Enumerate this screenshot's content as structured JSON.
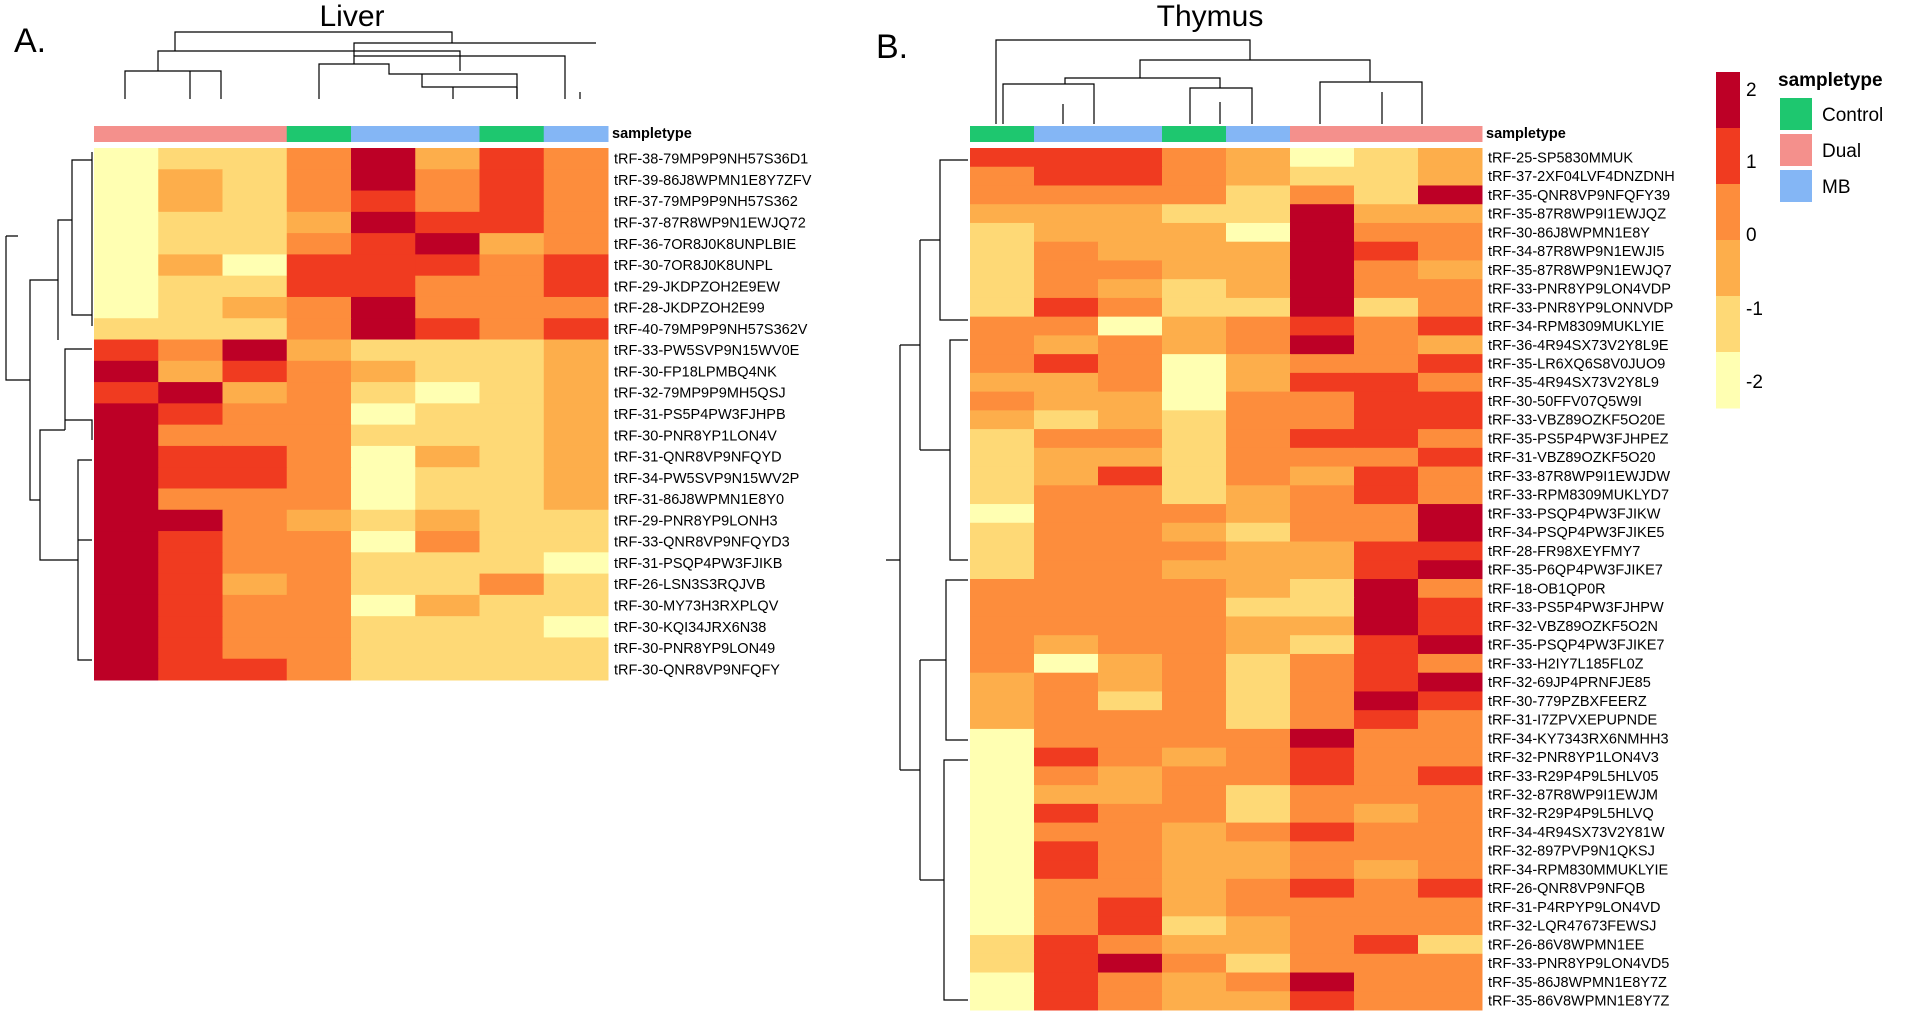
{
  "figure": {
    "panel_a": {
      "letter": "A.",
      "title": "Liver"
    },
    "panel_b": {
      "letter": "B.",
      "title": "Thymus"
    }
  },
  "chart_data": [
    {
      "type": "heatmap",
      "title": "Liver",
      "panel": "A.",
      "annotation_label": "sampletype",
      "column_groups": [
        "Dual",
        "Dual",
        "Dual",
        "Control",
        "MB",
        "MB",
        "Control",
        "MB"
      ],
      "rows": [
        "tRF-38-79MP9P9NH57S36D1",
        "tRF-39-86J8WPMN1E8Y7ZFV",
        "tRF-37-79MP9P9NH57S362",
        "tRF-37-87R8WP9N1EWJQ72",
        "tRF-36-7OR8J0K8UNPLBIE",
        "tRF-30-7OR8J0K8UNPL",
        "tRF-29-JKDPZOH2E9EW",
        "tRF-28-JKDPZOH2E99",
        "tRF-40-79MP9P9NH57S362V",
        "tRF-33-PW5SVP9N15WV0E",
        "tRF-30-FP18LPMBQ4NK",
        "tRF-32-79MP9P9MH5QSJ",
        "tRF-31-PS5P4PW3FJHPB",
        "tRF-30-PNR8YP1LON4V",
        "tRF-31-QNR8VP9NFQYD",
        "tRF-34-PW5SVP9N15WV2P",
        "tRF-31-86J8WPMN1E8Y0",
        "tRF-29-PNR8YP9LONH3",
        "tRF-33-QNR8VP9NFQYD3",
        "tRF-31-PSQP4PW3FJIKB",
        "tRF-26-LSN3S3RQJVB",
        "tRF-30-MY73H3RXPLQV",
        "tRF-30-KQI34JRX6N38",
        "tRF-30-PNR8YP9LON49",
        "tRF-30-QNR8VP9NFQFY"
      ],
      "values": [
        [
          -2,
          -1,
          -1,
          0,
          2,
          -0.5,
          1,
          0
        ],
        [
          -2,
          -0.5,
          -1,
          0,
          2,
          0,
          1,
          0
        ],
        [
          -2,
          -0.5,
          -1,
          0,
          1,
          0,
          1,
          0
        ],
        [
          -2,
          -1,
          -1,
          -0.5,
          2,
          1,
          1,
          0
        ],
        [
          -2,
          -1,
          -1,
          0,
          1,
          2,
          -0.5,
          0
        ],
        [
          -2,
          -0.5,
          -2,
          1,
          1,
          1,
          0,
          1
        ],
        [
          -2,
          -1,
          -1,
          1,
          1,
          0,
          0,
          1
        ],
        [
          -2,
          -1,
          -0.5,
          0,
          2,
          0,
          0,
          0
        ],
        [
          -1,
          -1,
          -1,
          0,
          2,
          1,
          0,
          1
        ],
        [
          1,
          0,
          2,
          -0.5,
          -1,
          -1,
          -1,
          -0.5
        ],
        [
          2,
          -0.5,
          1,
          0,
          -0.5,
          -1,
          -1,
          -0.5
        ],
        [
          1,
          2,
          -0.5,
          0,
          -1,
          -2,
          -1,
          -0.5
        ],
        [
          2,
          1,
          0,
          0,
          -2,
          -1,
          -1,
          -0.5
        ],
        [
          2,
          0,
          0,
          0,
          -1,
          -1,
          -1,
          -0.5
        ],
        [
          2,
          1,
          1,
          0,
          -2,
          -0.5,
          -1,
          -0.5
        ],
        [
          2,
          1,
          1,
          0,
          -2,
          -1,
          -1,
          -0.5
        ],
        [
          2,
          0,
          0,
          0,
          -2,
          -1,
          -1,
          -0.5
        ],
        [
          2,
          2,
          0,
          -0.5,
          -1,
          -0.5,
          -1,
          -1
        ],
        [
          2,
          1,
          0,
          0,
          -2,
          0,
          -1,
          -1
        ],
        [
          2,
          1,
          0,
          0,
          -1,
          -1,
          -1,
          -2
        ],
        [
          2,
          1,
          -0.5,
          0,
          -1,
          -1,
          0,
          -1
        ],
        [
          2,
          1,
          0,
          0,
          -2,
          -0.5,
          -1,
          -1
        ],
        [
          2,
          1,
          0,
          0,
          -1,
          -1,
          -1,
          -2
        ],
        [
          2,
          1,
          0,
          0,
          -1,
          -1,
          -1,
          -1
        ],
        [
          2,
          1,
          1,
          0,
          -1,
          -1,
          -1,
          -1
        ]
      ]
    },
    {
      "type": "heatmap",
      "title": "Thymus",
      "panel": "B.",
      "annotation_label": "sampletype",
      "column_groups": [
        "Control",
        "MB",
        "MB",
        "Control",
        "MB",
        "Dual",
        "Dual",
        "Dual"
      ],
      "rows": [
        "tRF-25-SP5830MMUK",
        "tRF-37-2XF04LVF4DNZDNH",
        "tRF-35-QNR8VP9NFQFY39",
        "tRF-35-87R8WP9I1EWJQZ",
        "tRF-30-86J8WPMN1E8Y",
        "tRF-34-87R8WP9N1EWJI5",
        "tRF-35-87R8WP9N1EWJQ7",
        "tRF-33-PNR8YP9LON4VDP",
        "tRF-33-PNR8YP9LONNVDP",
        "tRF-34-RPM8309MUKLYIE",
        "tRF-36-4R94SX73V2Y8L9E",
        "tRF-35-LR6XQ6S8V0JUO9",
        "tRF-35-4R94SX73V2Y8L9",
        "tRF-30-50FFV07Q5W9I",
        "tRF-33-VBZ89OZKF5O20E",
        "tRF-35-PS5P4PW3FJHPEZ",
        "tRF-31-VBZ89OZKF5O20",
        "tRF-33-87R8WP9I1EWJDW",
        "tRF-33-RPM8309MUKLYD7",
        "tRF-33-PSQP4PW3FJIKW",
        "tRF-34-PSQP4PW3FJIKE5",
        "tRF-28-FR98XEYFMY7",
        "tRF-35-P6QP4PW3FJIKE7",
        "tRF-18-OB1QP0R",
        "tRF-33-PS5P4PW3FJHPW",
        "tRF-32-VBZ89OZKF5O2N",
        "tRF-35-PSQP4PW3FJIKE7",
        "tRF-33-H2IY7L185FL0Z",
        "tRF-32-69JP4PRNFJE85",
        "tRF-30-779PZBXFEERZ",
        "tRF-31-I7ZPVXEPUPNDE",
        "tRF-34-KY7343RX6NMHH3",
        "tRF-32-PNR8YP1LON4V3",
        "tRF-33-R29P4P9L5HLV05",
        "tRF-32-87R8WP9I1EWJM",
        "tRF-32-R29P4P9L5HLVQ",
        "tRF-34-4R94SX73V2Y81W",
        "tRF-32-897PVP9N1QKSJ",
        "tRF-34-RPM830MMUKLYIE",
        "tRF-26-QNR8VP9NFQB",
        "tRF-31-P4RPYP9LON4VD",
        "tRF-32-LQR47673FEWSJ",
        "tRF-26-86V8WPMN1EE",
        "tRF-33-PNR8YP9LON4VD5",
        "tRF-35-86J8WPMN1E8Y7Z",
        "tRF-35-86V8WPMN1E8Y7Z"
      ],
      "values": [
        [
          1,
          1,
          1,
          0,
          -0.5,
          -2,
          -1,
          -0.5
        ],
        [
          0,
          1,
          1,
          0,
          -0.5,
          -1,
          -1,
          -0.5
        ],
        [
          0,
          0,
          0,
          0,
          -1,
          0,
          -1,
          2
        ],
        [
          -0.5,
          -0.5,
          -0.5,
          -1,
          -1,
          2,
          -0.5,
          -0.5
        ],
        [
          -1,
          -0.5,
          -0.5,
          -0.5,
          -2,
          2,
          0,
          0
        ],
        [
          -1,
          0,
          -0.5,
          -0.5,
          -0.5,
          2,
          1,
          0
        ],
        [
          -1,
          0,
          0,
          -0.5,
          -0.5,
          2,
          0,
          -0.5
        ],
        [
          -1,
          0,
          -0.5,
          -1,
          -0.5,
          2,
          0,
          0
        ],
        [
          -1,
          1,
          0,
          -1,
          -1,
          2,
          -1,
          0
        ],
        [
          0,
          0,
          -2,
          -0.5,
          0,
          1,
          0,
          1
        ],
        [
          0,
          -0.5,
          0,
          -0.5,
          0,
          2,
          0,
          -0.5
        ],
        [
          0,
          1,
          0,
          -2,
          -0.5,
          0,
          0,
          1
        ],
        [
          -0.5,
          -0.5,
          0,
          -2,
          -0.5,
          1,
          1,
          0
        ],
        [
          0,
          -0.5,
          -0.5,
          -2,
          0,
          0,
          1,
          1
        ],
        [
          -0.5,
          -1,
          -0.5,
          -1,
          0,
          0,
          1,
          1
        ],
        [
          -1,
          0,
          0,
          -1,
          0,
          1,
          1,
          0
        ],
        [
          -1,
          -0.5,
          -0.5,
          -1,
          0,
          0,
          0,
          1
        ],
        [
          -1,
          -0.5,
          1,
          -1,
          0,
          -0.5,
          1,
          0
        ],
        [
          -1,
          0,
          0,
          -1,
          -0.5,
          0,
          1,
          0
        ],
        [
          -2,
          0,
          0,
          0,
          -0.5,
          0,
          0,
          2
        ],
        [
          -1,
          0,
          0,
          -0.5,
          -1,
          0,
          0,
          2
        ],
        [
          -1,
          0,
          0,
          0,
          -0.5,
          -0.5,
          1,
          1
        ],
        [
          -1,
          0,
          0,
          -0.5,
          -0.5,
          -0.5,
          1,
          2
        ],
        [
          0,
          0,
          0,
          0,
          -0.5,
          -1,
          2,
          0
        ],
        [
          0,
          0,
          0,
          0,
          -1,
          -1,
          2,
          1
        ],
        [
          0,
          0,
          0,
          0,
          -0.5,
          -0.5,
          2,
          1
        ],
        [
          0,
          -0.5,
          0,
          0,
          -0.5,
          -1,
          1,
          2
        ],
        [
          0,
          -2,
          -0.5,
          0,
          -1,
          0,
          1,
          0
        ],
        [
          -0.5,
          0,
          -0.5,
          0,
          -1,
          0,
          1,
          2
        ],
        [
          -0.5,
          0,
          -1,
          0,
          -1,
          0,
          2,
          1
        ],
        [
          -0.5,
          0,
          0,
          0,
          -1,
          0,
          1,
          0
        ],
        [
          -2,
          0,
          0,
          0,
          0,
          2,
          0,
          0
        ],
        [
          -2,
          1,
          0,
          -0.5,
          0,
          1,
          0,
          0
        ],
        [
          -2,
          0,
          -0.5,
          0,
          0,
          1,
          0,
          1
        ],
        [
          -2,
          -0.5,
          -0.5,
          0,
          -1,
          0,
          0,
          0
        ],
        [
          -2,
          1,
          0,
          0,
          -1,
          0,
          -0.5,
          0
        ],
        [
          -2,
          0,
          0,
          -0.5,
          0,
          1,
          0,
          0
        ],
        [
          -2,
          1,
          0,
          -0.5,
          -0.5,
          0,
          0,
          0
        ],
        [
          -2,
          1,
          0,
          -0.5,
          -0.5,
          0,
          -0.5,
          0
        ],
        [
          -2,
          0,
          0,
          -0.5,
          0,
          1,
          0,
          1
        ],
        [
          -2,
          0,
          1,
          -0.5,
          0,
          0,
          0,
          0
        ],
        [
          -2,
          0,
          1,
          -1,
          -0.5,
          0,
          0,
          0
        ],
        [
          -1,
          1,
          0,
          -0.5,
          -0.5,
          0,
          1,
          -1
        ],
        [
          -1,
          1,
          2,
          0,
          -1,
          0,
          0,
          0
        ],
        [
          -2,
          1,
          0,
          -0.5,
          0,
          2,
          0,
          0
        ],
        [
          -2,
          1,
          0,
          -0.5,
          -0.5,
          1,
          0,
          0
        ]
      ]
    }
  ],
  "legend": {
    "scale": {
      "ticks": [
        "2",
        "1",
        "0",
        "-1",
        "-2"
      ],
      "colors": [
        "#bd0026",
        "#f03b20",
        "#fd8d3c",
        "#fdae4b",
        "#fed976",
        "#ffffb2"
      ]
    },
    "sampletype": {
      "title": "sampletype",
      "items": [
        {
          "label": "Control",
          "color": "#1ec76f"
        },
        {
          "label": "Dual",
          "color": "#f4908c"
        },
        {
          "label": "MB",
          "color": "#84b6f5"
        }
      ]
    }
  },
  "group_colors": {
    "Control": "#1ec76f",
    "Dual": "#f4908c",
    "MB": "#84b6f5"
  }
}
